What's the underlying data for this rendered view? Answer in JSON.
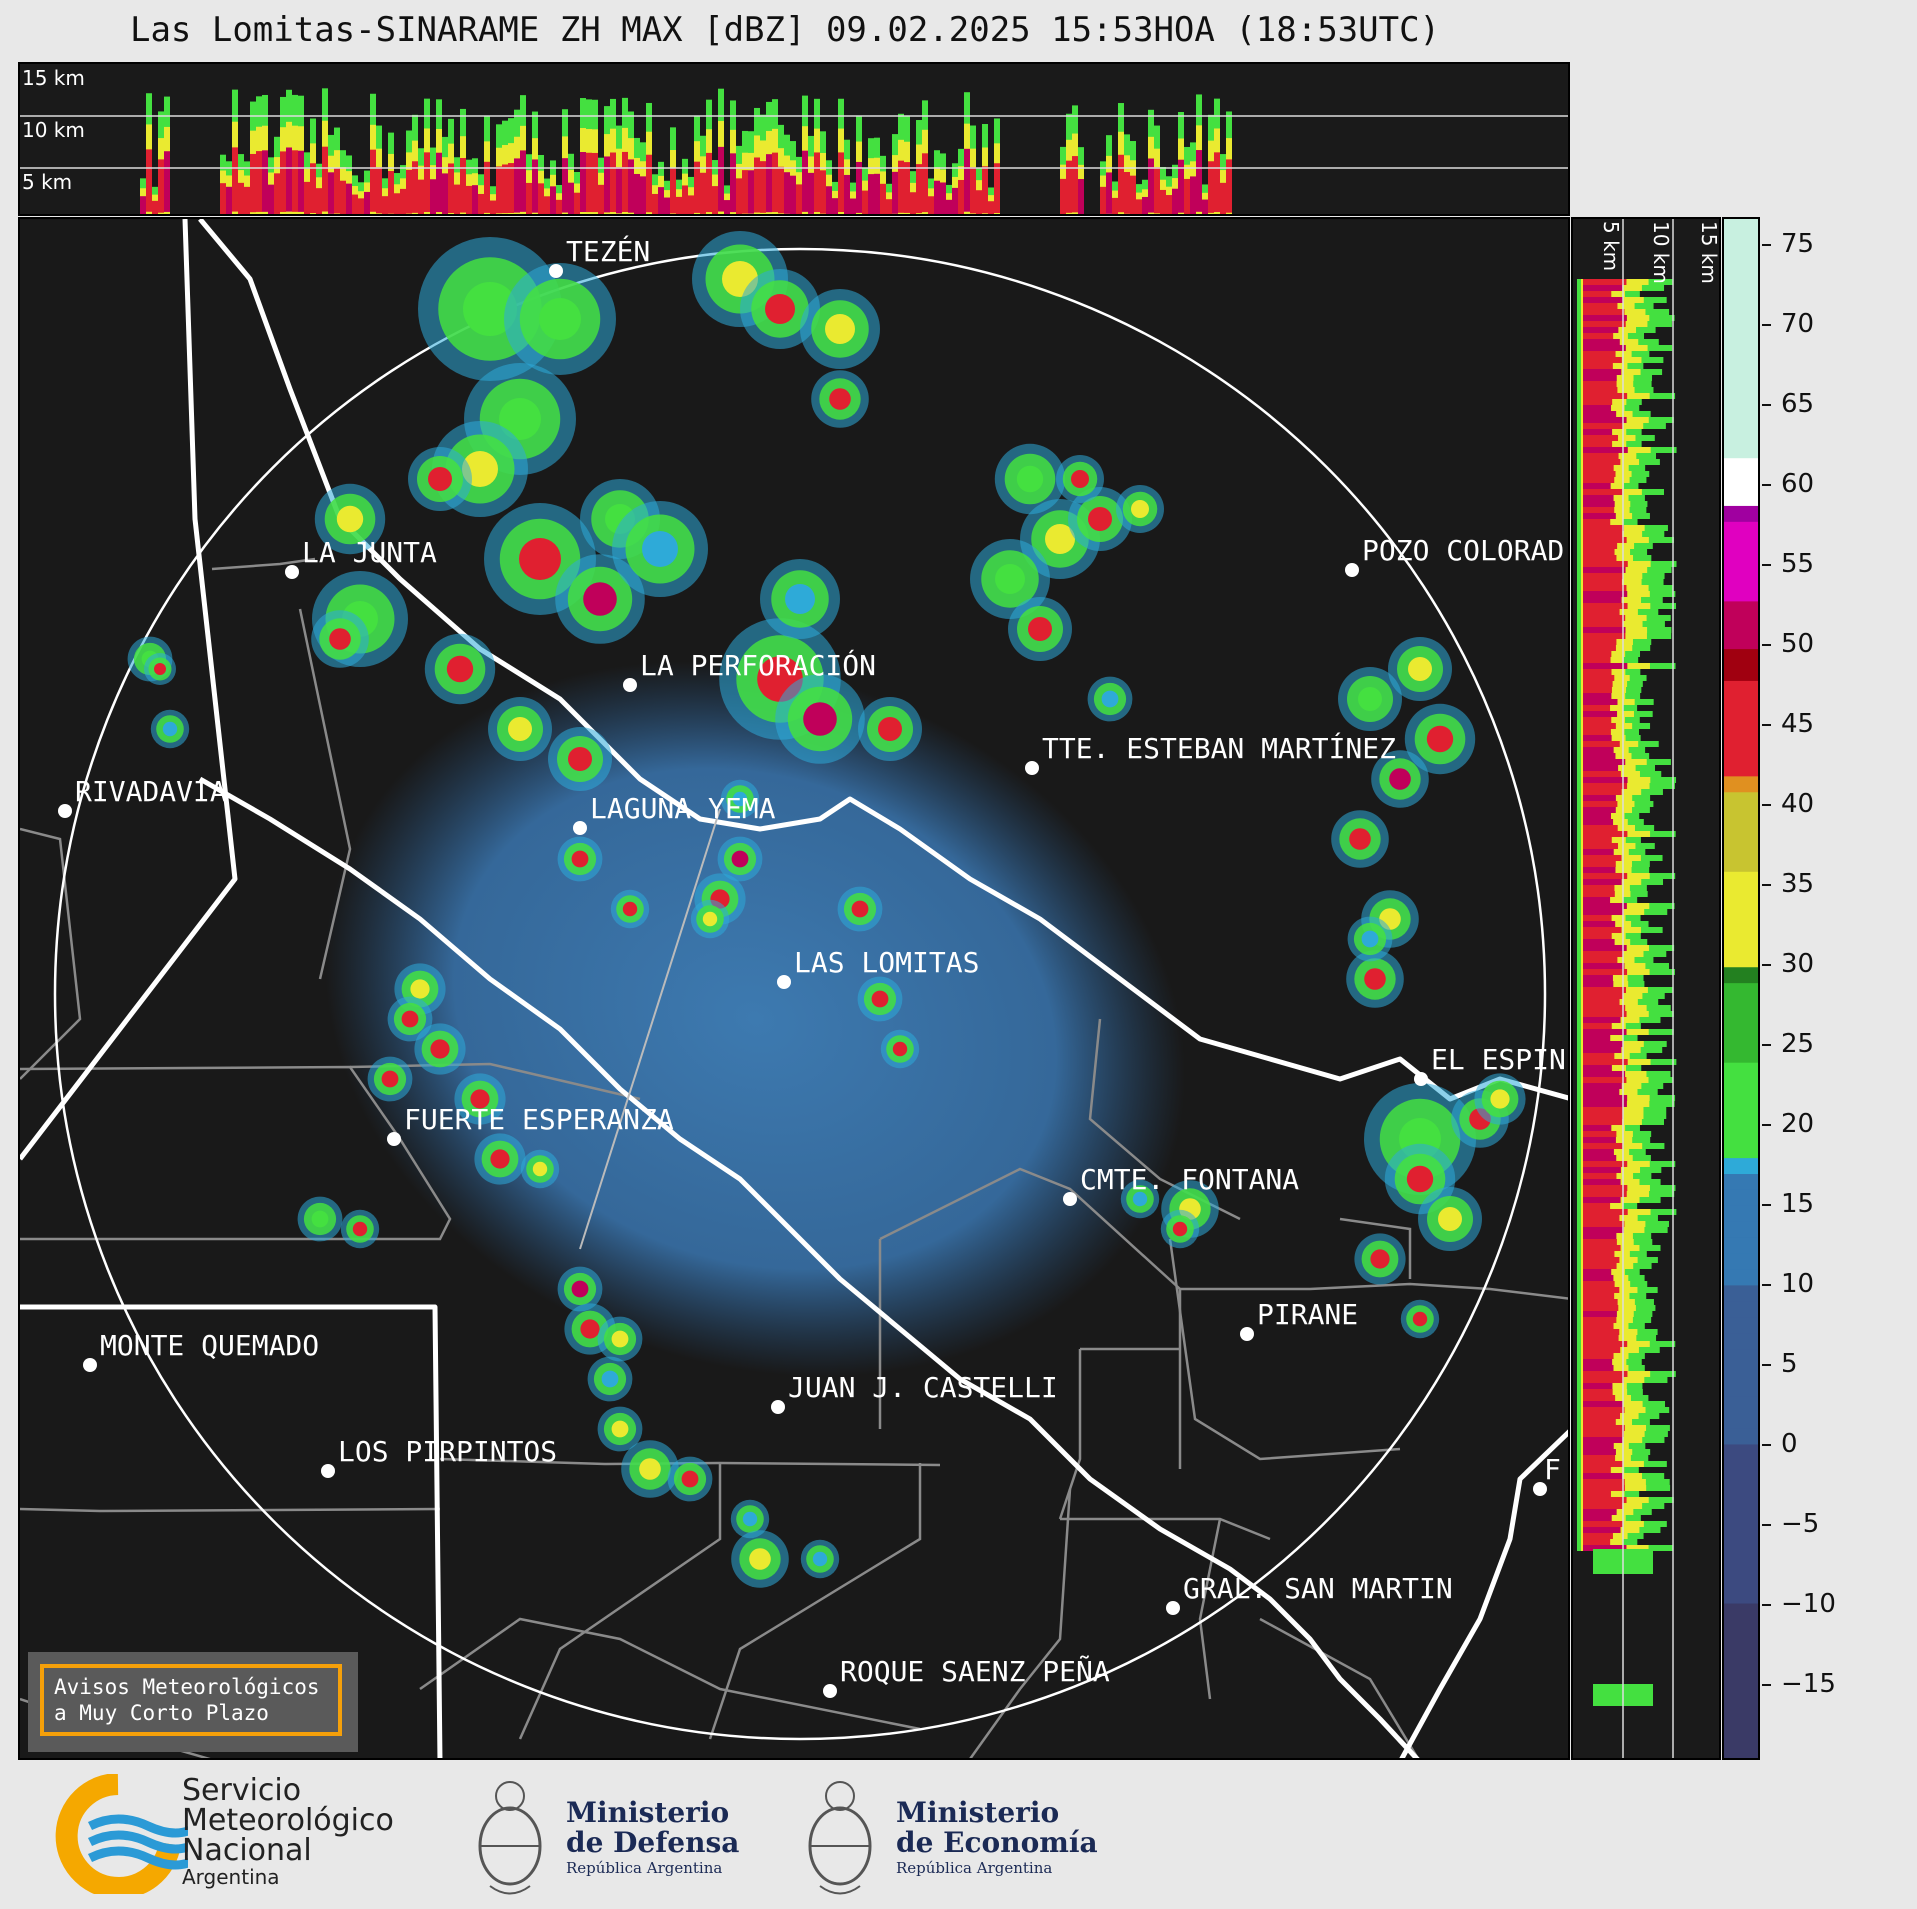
{
  "title": "Las Lomitas-SINARAME ZH MAX [dBZ] 09.02.2025 15:53HOA (18:53UTC)",
  "top_panel": {
    "height_labels": [
      "15 km",
      "10 km",
      "5 km"
    ]
  },
  "side_panel": {
    "height_labels": [
      "5 km",
      "10 km",
      "15 km"
    ]
  },
  "colorbar": {
    "ticks": [
      "75",
      "70",
      "65",
      "60",
      "55",
      "50",
      "45",
      "40",
      "35",
      "30",
      "25",
      "20",
      "15",
      "10",
      "5",
      "0",
      "−5",
      "−10",
      "−15"
    ],
    "min": -20,
    "max": 77
  },
  "cities": [
    {
      "name": "TEZÉN"
    },
    {
      "name": "LA JUNTA"
    },
    {
      "name": "POZO COLORAD"
    },
    {
      "name": "LA PERFORACIÓN"
    },
    {
      "name": "TTE. ESTEBAN MARTÍNEZ"
    },
    {
      "name": "RIVADAVIA"
    },
    {
      "name": "LAGUNA YEMA"
    },
    {
      "name": "LAS LOMITAS"
    },
    {
      "name": "EL ESPIN"
    },
    {
      "name": "FUERTE ESPERANZA"
    },
    {
      "name": "CMTE. FONTANA"
    },
    {
      "name": "PIRANE"
    },
    {
      "name": "MONTE QUEMADO"
    },
    {
      "name": "JUAN J. CASTELLI"
    },
    {
      "name": "LOS PIRPINTOS"
    },
    {
      "name": "GRAL. SAN MARTIN"
    },
    {
      "name": "ROQUE SAENZ PEÑA"
    },
    {
      "name": "F"
    }
  ],
  "alert": {
    "line1": "Avisos Meteorológicos",
    "line2": "a Muy Corto Plazo"
  },
  "logos": {
    "smn": {
      "line1": "Servicio",
      "line2": "Meteorológico",
      "line3": "Nacional",
      "line4": "Argentina"
    },
    "defensa": {
      "line1": "Ministerio",
      "line2": "de Defensa",
      "line3": "República Argentina"
    },
    "economia": {
      "line1": "Ministerio",
      "line2": "de Economía",
      "line3": "República Argentina"
    }
  },
  "colors": {
    "background": "#191919",
    "boundary": "#ffffff",
    "alert_border": "#f5a00a"
  }
}
